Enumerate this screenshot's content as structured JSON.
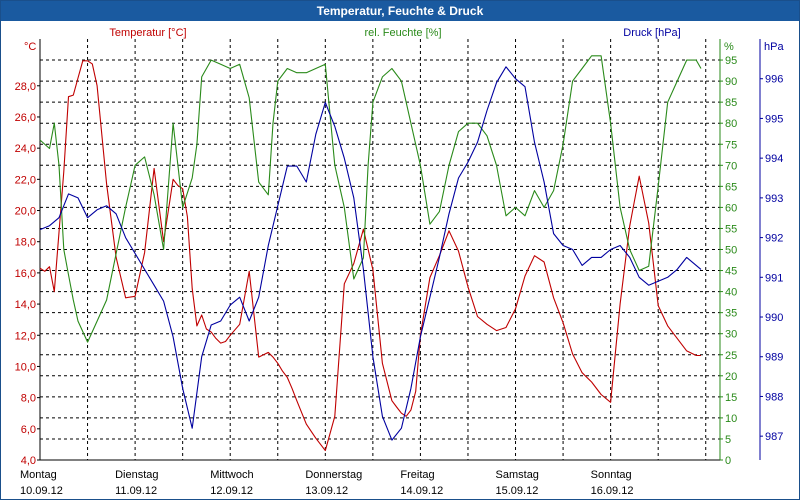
{
  "window": {
    "title": "Temperatur, Feuchte & Druck"
  },
  "colors": {
    "temperature": "#c00000",
    "humidity": "#2a8a1a",
    "pressure": "#0000a0",
    "grid": "#000000",
    "titlebar": "#1a5aa0"
  },
  "chart_data": {
    "type": "line",
    "title": "Temperatur, Feuchte & Druck",
    "grid": true,
    "x_axis": {
      "range": [
        0,
        7.15
      ],
      "ticks": [
        {
          "pos": 0,
          "day": "Montag",
          "date": "10.09.12"
        },
        {
          "pos": 1,
          "day": "Dienstag",
          "date": "11.09.12"
        },
        {
          "pos": 2,
          "day": "Mittwoch",
          "date": "12.09.12"
        },
        {
          "pos": 3,
          "day": "Donnerstag",
          "date": "13.09.12"
        },
        {
          "pos": 4,
          "day": "Freitag",
          "date": "14.09.12"
        },
        {
          "pos": 5,
          "day": "Samstag",
          "date": "15.09.12"
        },
        {
          "pos": 6,
          "day": "Sonntag",
          "date": "16.09.12"
        }
      ]
    },
    "axes": {
      "temperature": {
        "label": "Temperatur [°C]",
        "unit": "°C",
        "range": [
          4,
          31
        ],
        "ticks": [
          "4,0",
          "6,0",
          "8,0",
          "10,0",
          "12,0",
          "14,0",
          "16,0",
          "18,0",
          "20,0",
          "22,0",
          "24,0",
          "26,0",
          "28,0"
        ]
      },
      "humidity": {
        "label": "rel. Feuchte [%]",
        "unit": "%",
        "range": [
          0,
          100
        ],
        "ticks": [
          "0",
          "5",
          "10",
          "15",
          "20",
          "25",
          "30",
          "35",
          "40",
          "45",
          "50",
          "55",
          "60",
          "65",
          "70",
          "75",
          "80",
          "85",
          "90",
          "95"
        ]
      },
      "pressure": {
        "label": "Druck [hPa]",
        "unit": "hPa",
        "range": [
          986.4,
          997.0
        ],
        "ticks": [
          "987",
          "988",
          "989",
          "990",
          "991",
          "992",
          "993",
          "994",
          "995",
          "996"
        ]
      }
    },
    "series": [
      {
        "name": "Temperatur [°C]",
        "axis": "temperature",
        "x": [
          0.0,
          0.05,
          0.1,
          0.15,
          0.2,
          0.25,
          0.3,
          0.35,
          0.4,
          0.45,
          0.5,
          0.55,
          0.6,
          0.7,
          0.8,
          0.9,
          1.0,
          1.1,
          1.2,
          1.3,
          1.4,
          1.45,
          1.5,
          1.55,
          1.6,
          1.65,
          1.7,
          1.75,
          1.8,
          1.85,
          1.9,
          1.95,
          2.0,
          2.1,
          2.2,
          2.3,
          2.4,
          2.45,
          2.5,
          2.55,
          2.6,
          2.65,
          2.7,
          2.8,
          2.9,
          3.0,
          3.1,
          3.2,
          3.3,
          3.4,
          3.5,
          3.6,
          3.7,
          3.75,
          3.8,
          3.85,
          3.9,
          3.95,
          4.0,
          4.1,
          4.2,
          4.3,
          4.4,
          4.5,
          4.6,
          4.7,
          4.8,
          4.9,
          5.0,
          5.1,
          5.2,
          5.3,
          5.4,
          5.5,
          5.6,
          5.7,
          5.8,
          5.9,
          6.0,
          6.1,
          6.2,
          6.25,
          6.3,
          6.4,
          6.5,
          6.6,
          6.7,
          6.8,
          6.9,
          6.95
        ],
        "y": [
          16.3,
          16.1,
          16.4,
          14.8,
          18.6,
          22.5,
          27.3,
          27.4,
          28.5,
          29.6,
          29.6,
          29.4,
          28.0,
          21.7,
          17.0,
          14.4,
          14.5,
          17.3,
          22.7,
          18.0,
          22.0,
          21.6,
          21.4,
          19.6,
          15.0,
          12.6,
          13.3,
          12.4,
          12.2,
          11.8,
          11.5,
          11.6,
          12.0,
          12.7,
          16.1,
          10.6,
          10.9,
          10.6,
          10.2,
          9.7,
          9.3,
          8.6,
          7.8,
          6.3,
          5.4,
          4.6,
          6.8,
          15.3,
          16.6,
          18.8,
          16.2,
          10.2,
          7.8,
          7.4,
          7.0,
          6.8,
          7.2,
          8.4,
          12.0,
          15.7,
          17.1,
          18.7,
          17.4,
          15.1,
          13.2,
          12.7,
          12.3,
          12.5,
          13.7,
          15.8,
          17.1,
          16.7,
          14.4,
          12.8,
          10.8,
          9.6,
          9.0,
          8.2,
          7.7,
          14.0,
          19.0,
          20.6,
          22.2,
          19.2,
          13.9,
          12.6,
          11.8,
          11.0,
          10.7,
          10.7
        ]
      },
      {
        "name": "rel. Feuchte [%]",
        "axis": "humidity",
        "x": [
          0.0,
          0.1,
          0.15,
          0.2,
          0.25,
          0.3,
          0.35,
          0.4,
          0.5,
          0.6,
          0.7,
          0.8,
          0.9,
          1.0,
          1.1,
          1.2,
          1.3,
          1.4,
          1.5,
          1.6,
          1.65,
          1.7,
          1.8,
          1.9,
          2.0,
          2.1,
          2.2,
          2.3,
          2.4,
          2.45,
          2.5,
          2.6,
          2.7,
          2.8,
          2.9,
          3.0,
          3.1,
          3.2,
          3.3,
          3.4,
          3.45,
          3.5,
          3.6,
          3.7,
          3.8,
          3.9,
          4.0,
          4.1,
          4.2,
          4.3,
          4.4,
          4.5,
          4.6,
          4.7,
          4.8,
          4.9,
          5.0,
          5.1,
          5.2,
          5.3,
          5.4,
          5.5,
          5.6,
          5.7,
          5.8,
          5.9,
          6.0,
          6.1,
          6.2,
          6.3,
          6.4,
          6.5,
          6.6,
          6.7,
          6.8,
          6.9,
          6.95
        ],
        "y": [
          76,
          74,
          80,
          70,
          50,
          44,
          38,
          33,
          28,
          33,
          38,
          49,
          60,
          70,
          72,
          63,
          50,
          80,
          60,
          67,
          75,
          91,
          95,
          94,
          93,
          94,
          86,
          66,
          63,
          80,
          90,
          93,
          92,
          92,
          93,
          94,
          70,
          60,
          43,
          48,
          70,
          85,
          91,
          93,
          90,
          80,
          70,
          56,
          59,
          70,
          78,
          80,
          80,
          77,
          70,
          58,
          60,
          58,
          64,
          60,
          64,
          75,
          90,
          93,
          96,
          96,
          80,
          60,
          50,
          45,
          46,
          65,
          85,
          90,
          95,
          95,
          93
        ]
      },
      {
        "name": "Druck [hPa]",
        "axis": "pressure",
        "x": [
          0.0,
          0.1,
          0.2,
          0.3,
          0.4,
          0.5,
          0.6,
          0.7,
          0.8,
          0.9,
          1.0,
          1.1,
          1.2,
          1.3,
          1.4,
          1.5,
          1.6,
          1.7,
          1.8,
          1.9,
          2.0,
          2.1,
          2.2,
          2.3,
          2.4,
          2.5,
          2.6,
          2.7,
          2.8,
          2.9,
          3.0,
          3.1,
          3.2,
          3.3,
          3.4,
          3.5,
          3.6,
          3.7,
          3.8,
          3.9,
          4.0,
          4.1,
          4.2,
          4.3,
          4.4,
          4.5,
          4.6,
          4.7,
          4.8,
          4.9,
          5.0,
          5.1,
          5.2,
          5.3,
          5.4,
          5.5,
          5.6,
          5.7,
          5.8,
          5.9,
          6.0,
          6.1,
          6.2,
          6.3,
          6.4,
          6.5,
          6.6,
          6.7,
          6.8,
          6.9,
          6.95
        ],
        "y": [
          992.2,
          992.3,
          992.5,
          993.1,
          993.0,
          992.5,
          992.7,
          992.8,
          992.6,
          992.0,
          991.6,
          991.2,
          990.8,
          990.4,
          989.5,
          988.2,
          987.2,
          989.0,
          989.8,
          989.9,
          990.3,
          990.5,
          989.9,
          990.5,
          991.8,
          992.8,
          993.8,
          993.8,
          993.4,
          994.6,
          995.4,
          994.8,
          994.0,
          993.0,
          991.2,
          989.0,
          987.5,
          986.9,
          987.2,
          988.2,
          989.5,
          990.5,
          991.5,
          992.6,
          993.5,
          993.9,
          994.4,
          995.2,
          995.9,
          996.3,
          996.0,
          995.8,
          994.4,
          993.4,
          992.1,
          991.8,
          991.7,
          991.3,
          991.5,
          991.5,
          991.7,
          991.8,
          991.5,
          991.0,
          990.8,
          990.9,
          991.0,
          991.2,
          991.5,
          991.3,
          991.2
        ]
      }
    ]
  }
}
